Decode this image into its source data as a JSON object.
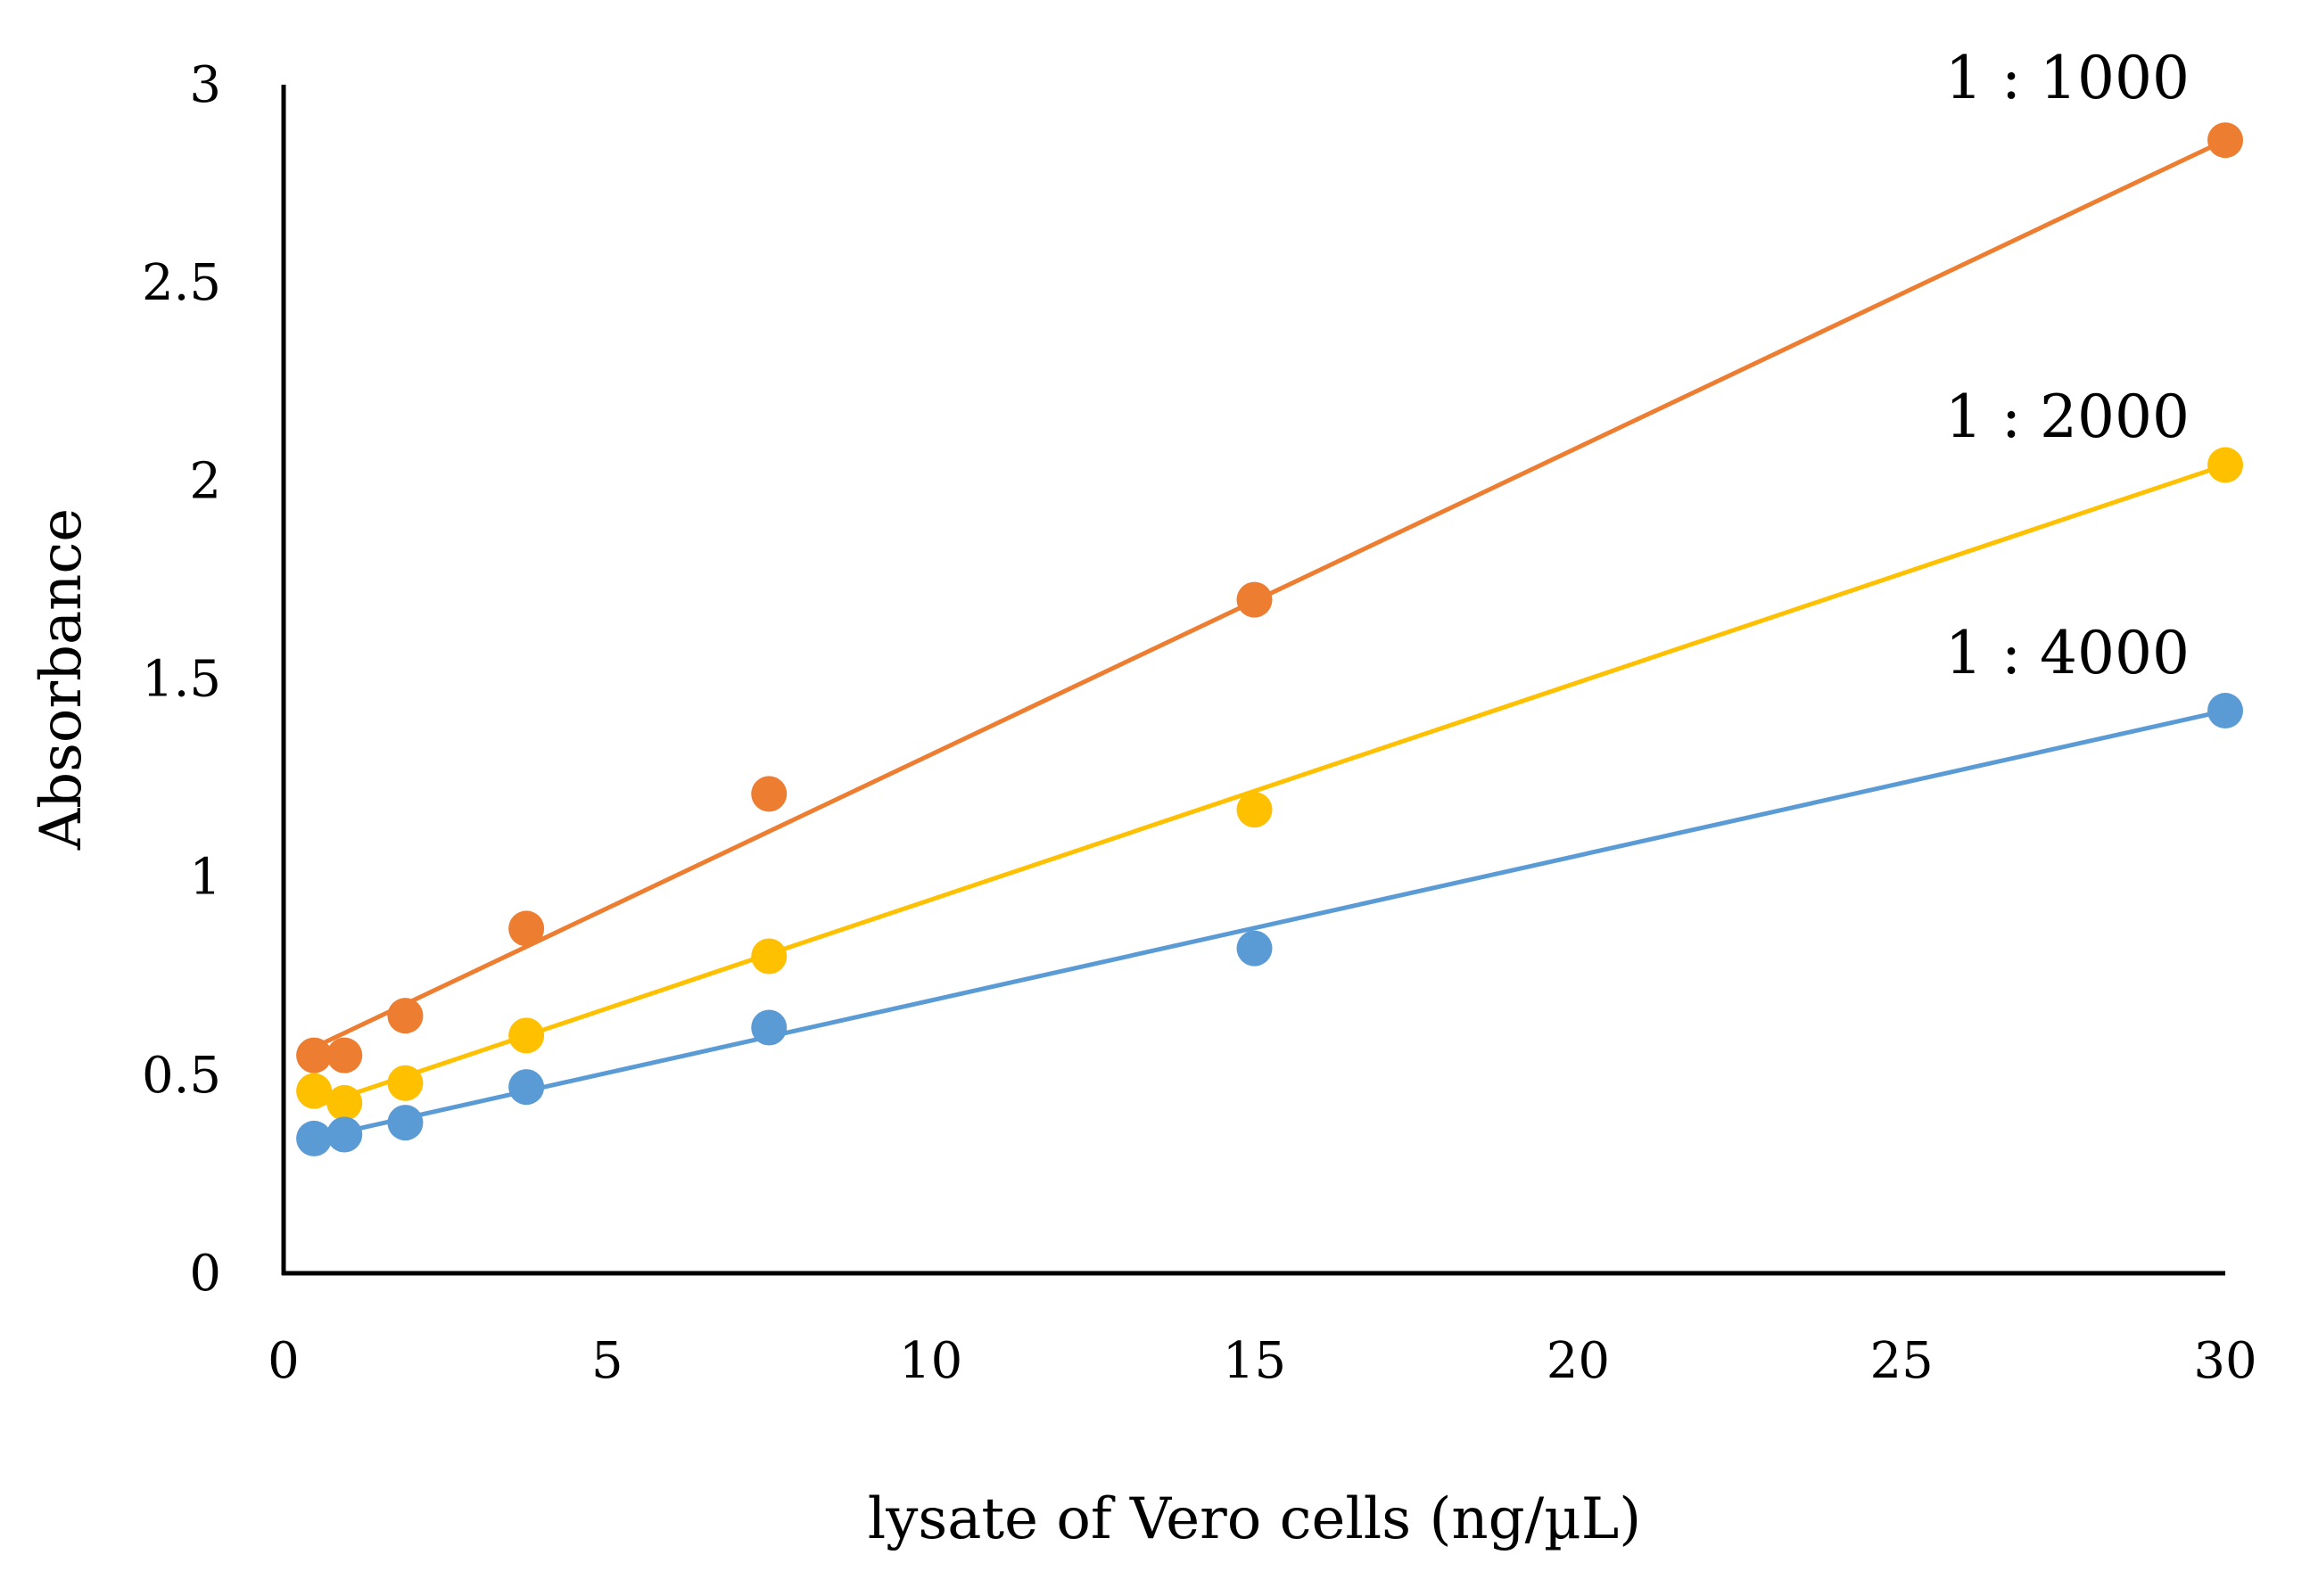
{
  "chart_data": {
    "type": "scatter",
    "title": "",
    "xlabel": "lysate of Vero cells (ng/µL)",
    "ylabel": "Absorbance",
    "xlim": [
      0,
      30
    ],
    "ylim": [
      0,
      3
    ],
    "xticks": [
      "0",
      "5",
      "10",
      "15",
      "20",
      "25",
      "30"
    ],
    "yticks": [
      "0",
      "0.5",
      "1",
      "1.5",
      "2",
      "2.5",
      "3"
    ],
    "grid": false,
    "legend": "none (series labelled inline at right end of each trendline)",
    "x": [
      0.47,
      0.94,
      1.88,
      3.75,
      7.5,
      15,
      30
    ],
    "series": [
      {
        "name": "1 : 1000",
        "color": "#ED7D31",
        "values": [
          0.55,
          0.55,
          0.65,
          0.87,
          1.21,
          1.7,
          2.86
        ],
        "trendline": {
          "type": "linear",
          "from": [
            0.47,
            0.57
          ],
          "to": [
            30,
            2.86
          ]
        }
      },
      {
        "name": "1 : 2000",
        "color": "#FFC000",
        "values": [
          0.46,
          0.43,
          0.48,
          0.6,
          0.8,
          1.17,
          2.04
        ],
        "trendline": {
          "type": "linear",
          "from": [
            0.47,
            0.42
          ],
          "to": [
            30,
            2.04
          ]
        }
      },
      {
        "name": "1 : 4000",
        "color": "#5B9BD5",
        "values": [
          0.34,
          0.35,
          0.38,
          0.47,
          0.62,
          0.82,
          1.42
        ],
        "trendline": {
          "type": "linear",
          "from": [
            0.47,
            0.34
          ],
          "to": [
            30,
            1.42
          ]
        }
      }
    ]
  }
}
